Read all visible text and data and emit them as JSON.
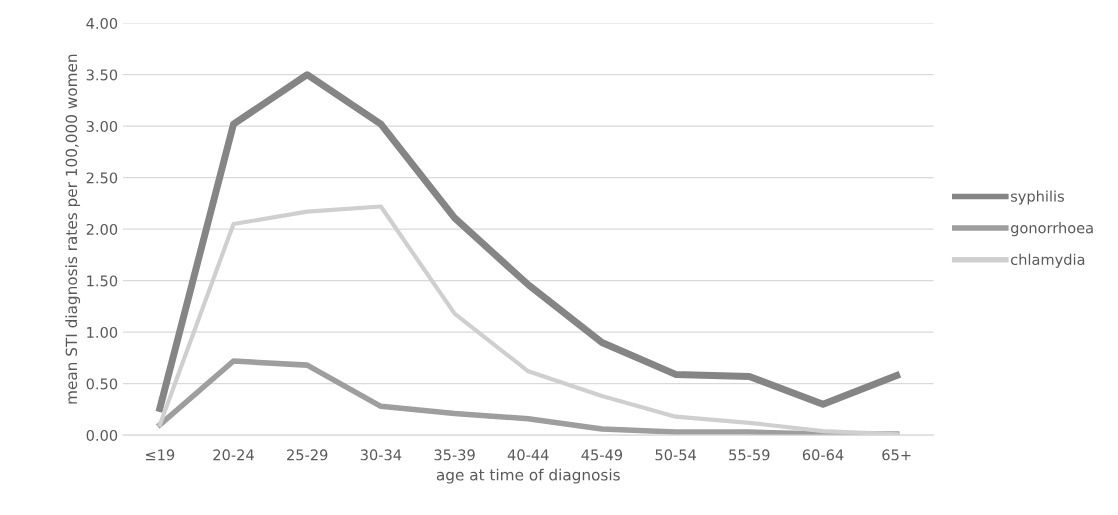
{
  "chart_data": {
    "type": "line",
    "xlabel": "age at time of diagnosis",
    "ylabel": "mean STI diagnosis rates per 100,000 women",
    "categories": [
      "≤19",
      "20-24",
      "25-29",
      "30-34",
      "35-39",
      "40-44",
      "45-49",
      "50-54",
      "55-59",
      "60-64",
      "65+"
    ],
    "series": [
      {
        "name": "syphilis",
        "color": "#858585",
        "values": [
          0.26,
          3.02,
          3.5,
          3.02,
          2.11,
          1.46,
          0.9,
          0.59,
          0.57,
          0.3,
          0.58
        ]
      },
      {
        "name": "gonorrhoea",
        "color": "#9e9e9e",
        "values": [
          0.1,
          0.72,
          0.68,
          0.28,
          0.21,
          0.16,
          0.06,
          0.03,
          0.03,
          0.01,
          0.01
        ]
      },
      {
        "name": "chlamydia",
        "color": "#cfcfcf",
        "values": [
          0.1,
          2.05,
          2.17,
          2.22,
          1.18,
          0.62,
          0.38,
          0.18,
          0.12,
          0.04,
          0.01
        ]
      }
    ],
    "ylim": [
      0,
      4
    ],
    "yticks": [
      {
        "value": 0,
        "label": "0.00"
      },
      {
        "value": 0.5,
        "label": "0.50"
      },
      {
        "value": 1,
        "label": "1.00"
      },
      {
        "value": 1.5,
        "label": "1.50"
      },
      {
        "value": 2,
        "label": "2.00"
      },
      {
        "value": 2.5,
        "label": "2.50"
      },
      {
        "value": 3,
        "label": "3.00"
      },
      {
        "value": 3.5,
        "label": "3.50"
      },
      {
        "value": 4,
        "label": "4.00"
      }
    ],
    "grid": "y",
    "legend": "right",
    "marker": "none",
    "line_style": "solid"
  }
}
